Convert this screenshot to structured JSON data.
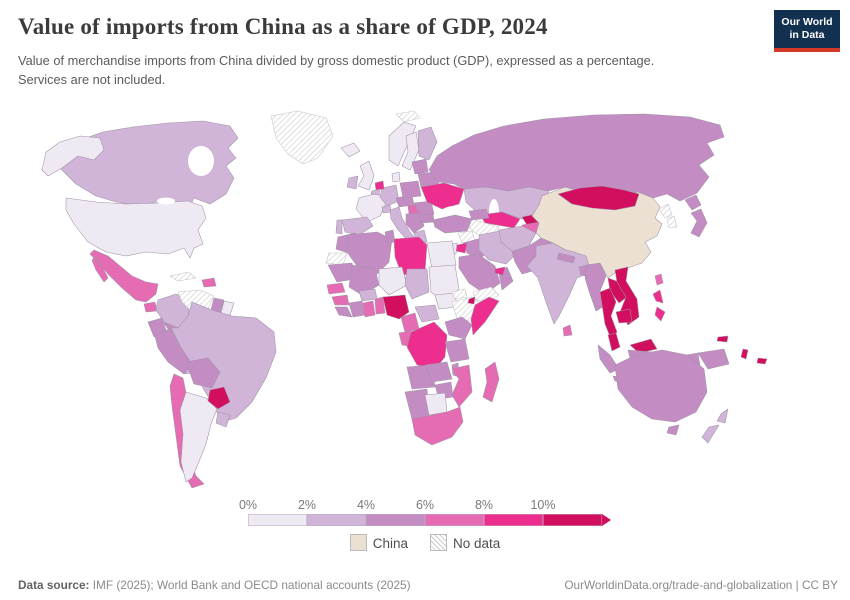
{
  "header": {
    "subtitle": "Value of merchandise imports from China divided by gross domestic product (GDP), expressed as a percentage.\nServices are not included.",
    "logo": {
      "line1": "Our World",
      "line2": "in Data"
    }
  },
  "chart_data": {
    "type": "choropleth",
    "title": "Value of imports from China as a share of GDP, 2024",
    "unit": "share of GDP (%)",
    "legend": {
      "position": "bottom",
      "tick_labels": [
        "0%",
        "2%",
        "4%",
        "6%",
        "8%",
        "10%"
      ],
      "bins": [
        {
          "range": "0-2%",
          "color": "#efe9f3"
        },
        {
          "range": "2-4%",
          "color": "#d0b5d9"
        },
        {
          "range": "4-6%",
          "color": "#c38dc4"
        },
        {
          "range": "6-8%",
          "color": "#e56cb2"
        },
        {
          "range": "8-10%",
          "color": "#ee2e8e"
        },
        {
          "range": ">10%",
          "color": "#d10f5e"
        }
      ],
      "china": {
        "label": "China",
        "color": "#ebe0d2"
      },
      "no_data": {
        "label": "No data"
      }
    },
    "countries": {
      "United States": "0-2%",
      "Canada": "2-4%",
      "Alaska": "0-2%",
      "Greenland": "No data",
      "Mexico": "6-8%",
      "Guatemala": "6-8%",
      "Honduras": "8-10%",
      "Nicaragua": "8-10%",
      "Costa Rica & Panama": "4-6%",
      "Cuba": "No data",
      "Dominican Republic": "6-8%",
      "Colombia": "2-4%",
      "Venezuela": "No data",
      "Guyana": "4-6%",
      "Suriname": "0-2%",
      "Ecuador": "4-6%",
      "Peru": "4-6%",
      "Brazil": "2-4%",
      "Bolivia": "4-6%",
      "Paraguay": ">10%",
      "Chile": "6-8%",
      "Argentina": "0-2%",
      "Uruguay": "2-4%",
      "Iceland": "0-2%",
      "United Kingdom": "0-2%",
      "Ireland": "2-4%",
      "Norway": "0-2%",
      "Sweden": "0-2%",
      "Finland": "2-4%",
      "Denmark": "0-2%",
      "France": "0-2%",
      "Spain": "2-4%",
      "Portugal": "2-4%",
      "Germany": "2-4%",
      "Netherlands": "8-10%",
      "Belgium": "2-4%",
      "Switzerland": "2-4%",
      "Italy": "2-4%",
      "Austria & Czechia": "4-6%",
      "Poland": "4-6%",
      "Hungary": "6-8%",
      "Balkans": "4-6%",
      "Greece": "2-4%",
      "Romania": "4-6%",
      "Bulgaria": "4-6%",
      "Ukraine": "8-10%",
      "Belarus": "4-6%",
      "Baltic states": "4-6%",
      "Svalbard": "No data",
      "Russia": "4-6%",
      "Turkey": "4-6%",
      "Caucasus": "4-6%",
      "Syria": "No data",
      "Iraq": "4-6%",
      "Iran": "2-4%",
      "Jordan": "8-10%",
      "Israel": "0-2%",
      "Saudi Arabia": "4-6%",
      "Yemen": "No data",
      "Oman": "4-6%",
      "United Arab Emirates": "8-10%",
      "Kazakhstan": "2-4%",
      "Uzbekistan": "8-10%",
      "Turkmenistan": "No data",
      "Kyrgyzstan": ">10%",
      "Tajikistan": "6-8%",
      "Afghanistan": "2-4%",
      "Pakistan": "4-6%",
      "India": "2-4%",
      "Nepal": "4-6%",
      "Bangladesh": "4-6%",
      "Sri Lanka": "6-8%",
      "China": "China",
      "Mongolia": ">10%",
      "North Korea": "No data",
      "South Korea": "No data",
      "Japan": "4-6%",
      "Taiwan": "6-8%",
      "Myanmar": "4-6%",
      "Thailand": ">10%",
      "Laos": ">10%",
      "Vietnam": ">10%",
      "Cambodia": ">10%",
      "Malaysia": ">10%",
      "Indonesia": "4-6%",
      "Philippines": "8-10%",
      "New Guinea": "4-6%",
      "Australia": "4-6%",
      "New Zealand": "2-4%",
      "Fiji": ">10%",
      "Solomon Islands": ">10%",
      "Vanuatu": ">10%",
      "Morocco": "4-6%",
      "Western Sahara": "No data",
      "Algeria": "4-6%",
      "Tunisia": "4-6%",
      "Libya": "8-10%",
      "Egypt": "0-2%",
      "Mauritania": "4-6%",
      "Mali": "4-6%",
      "Niger": "0-2%",
      "Chad": "2-4%",
      "Sudan": "0-2%",
      "South Sudan": "0-2%",
      "Eritrea": "No data",
      "Ethiopia": "No data",
      "Djibouti": ">10%",
      "Somalia": "8-10%",
      "Senegal": "6-8%",
      "Guinea": "6-8%",
      "Sierra Leone & Liberia": "4-6%",
      "Ivory Coast": "4-6%",
      "Ghana": "6-8%",
      "Togo & Benin": "6-8%",
      "Burkina Faso": "2-4%",
      "Nigeria": ">10%",
      "Cameroon": "6-8%",
      "Central African Republic": "2-4%",
      "Gabon & Congo": "6-8%",
      "DR Congo": "8-10%",
      "Uganda & Kenya": "4-6%",
      "Tanzania": "4-6%",
      "Angola": "4-6%",
      "Zambia": "4-6%",
      "Malawi": "4-6%",
      "Mozambique": "6-8%",
      "Zimbabwe": "4-6%",
      "Namibia": "4-6%",
      "Botswana": "0-2%",
      "South Africa": "6-8%",
      "Madagascar": "6-8%"
    }
  },
  "footer": {
    "datasource_label": "Data source:",
    "datasource_text": " IMF (2025); World Bank and OECD national accounts (2025)",
    "attribution": "OurWorldinData.org/trade-and-globalization | CC BY"
  }
}
